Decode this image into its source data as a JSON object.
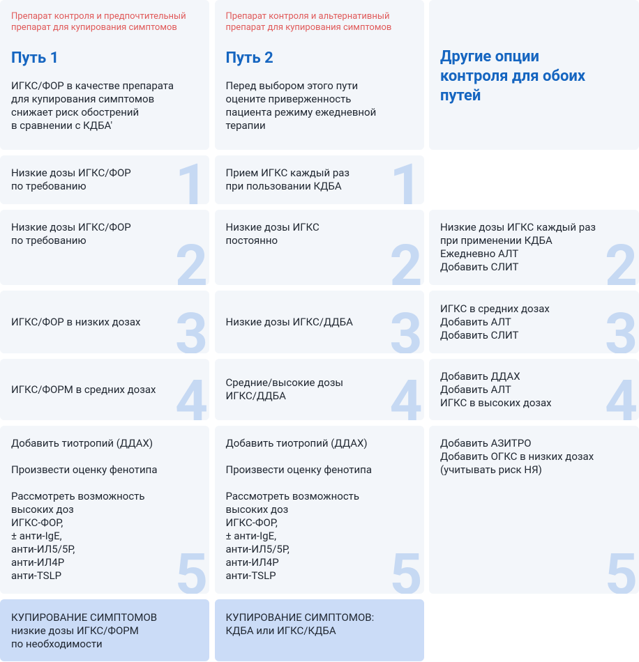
{
  "columns": [
    {
      "subtitle": [
        "Препарат контроля и предпочтительный",
        "препарат для купирования симптомов"
      ],
      "title": "Путь 1",
      "description": [
        "ИГКС/ФОР в качестве препарата",
        "для купирования симптомов",
        "снижает риск обострений",
        "в сравнении с КДБА'"
      ]
    },
    {
      "subtitle": [
        "Препарат контроля и альтернативный",
        "препарат для купирования симптомов"
      ],
      "title": "Путь 2",
      "description": [
        "Перед выбором этого пути",
        "оцените приверженность",
        "пациента режиму ежедневной",
        "терапии"
      ]
    },
    {
      "title": [
        "Другие опции",
        "контроля для обоих",
        "путей"
      ]
    }
  ],
  "steps": [
    {
      "number": 1,
      "cells": [
        {
          "paragraphs": [
            [
              "Низкие дозы ИГКС/ФОР",
              "по требованию"
            ]
          ]
        },
        {
          "paragraphs": [
            [
              "Прием ИГКС каждый раз",
              "при пользовании КДБА"
            ]
          ]
        },
        null
      ]
    },
    {
      "number": 2,
      "cells": [
        {
          "paragraphs": [
            [
              "Низкие дозы ИГКС/ФОР",
              "по требованию"
            ]
          ]
        },
        {
          "paragraphs": [
            [
              "Низкие дозы ИГКС",
              "постоянно"
            ]
          ]
        },
        {
          "paragraphs": [
            [
              "Низкие дозы ИГКС каждый раз",
              "при применении КДБА",
              "Ежедневно АЛТ",
              "Добавить СЛИТ"
            ]
          ]
        }
      ]
    },
    {
      "number": 3,
      "cells": [
        {
          "paragraphs": [
            [
              "ИГКС/ФОР в низких дозах"
            ]
          ]
        },
        {
          "paragraphs": [
            [
              "Низкие дозы ИГКС/ДДБА"
            ]
          ]
        },
        {
          "paragraphs": [
            [
              "ИГКС в средних дозах",
              "Добавить АЛТ",
              "Добавить СЛИТ"
            ]
          ]
        }
      ]
    },
    {
      "number": 4,
      "cells": [
        {
          "paragraphs": [
            [
              "ИГКС/ФОРМ в средних дозах"
            ]
          ]
        },
        {
          "paragraphs": [
            [
              "Средние/высокие дозы",
              "ИГКС/ДДБА"
            ]
          ]
        },
        {
          "paragraphs": [
            [
              "Добавить ДДАХ",
              "Добавить АЛТ",
              "ИГКС в высоких дозах"
            ]
          ]
        }
      ]
    },
    {
      "number": 5,
      "cells": [
        {
          "paragraphs": [
            [
              "Добавить тиотропий (ДДАХ)"
            ],
            [
              "Произвести оценку фенотипа"
            ],
            [
              "Рассмотреть возможность",
              "высоких доз",
              "ИГКС-ФОР,",
              "± анти-IgE,",
              "анти-ИЛ5/5Р,",
              "анти-ИЛ4Р",
              "анти-TSLP"
            ]
          ]
        },
        {
          "paragraphs": [
            [
              "Добавить тиотропий (ДДАХ)"
            ],
            [
              "Произвести оценку фенотипа"
            ],
            [
              "Рассмотреть возможность",
              "высоких доз",
              "ИГКС-ФОР,",
              "± анти-IgE,",
              "анти-ИЛ5/5Р,",
              "анти-ИЛ4Р",
              "анти-TSLP"
            ]
          ]
        },
        {
          "paragraphs": [
            [
              "Добавить АЗИТРО",
              "Добавить ОГКС в низких дозах",
              "(учитывать риск НЯ)"
            ]
          ]
        }
      ]
    }
  ],
  "reliever": [
    {
      "lines": [
        "КУПИРОВАНИЕ СИМПТОМОВ",
        "низкие дозы ИГКС/ФОРМ",
        "по необходимости"
      ]
    },
    {
      "lines": [
        "КУПИРОВАНИЕ СИМПТОМОВ:",
        "КДБА или ИГКС/КДБА"
      ]
    }
  ]
}
